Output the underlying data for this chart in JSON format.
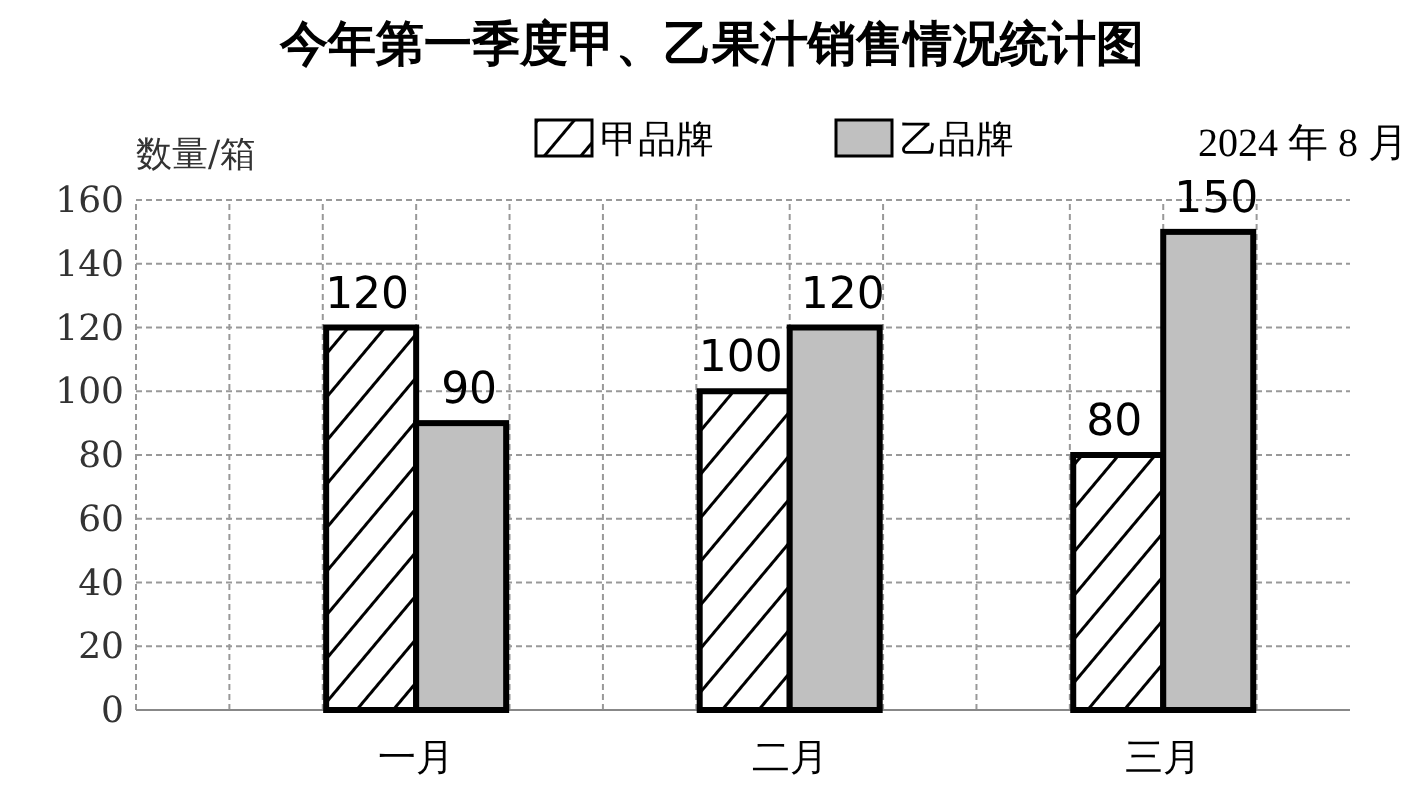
{
  "chart_data": {
    "type": "bar",
    "title": "今年第一季度甲、乙果汁销售情况统计图",
    "ylabel": "数量/箱",
    "categories": [
      "一月",
      "二月",
      "三月"
    ],
    "series": [
      {
        "name": "甲品牌",
        "color": "#000000",
        "values": [
          120,
          100,
          80
        ]
      },
      {
        "name": "乙品牌",
        "color": "#c0c0c0",
        "values": [
          90,
          120,
          150
        ]
      }
    ],
    "ylim": [
      0,
      160
    ],
    "yticks": [
      0,
      20,
      40,
      60,
      80,
      100,
      120,
      140,
      160
    ],
    "grid": true,
    "legend": "top",
    "data_labels": true,
    "annotations": [
      "2024 年 8 月"
    ]
  }
}
